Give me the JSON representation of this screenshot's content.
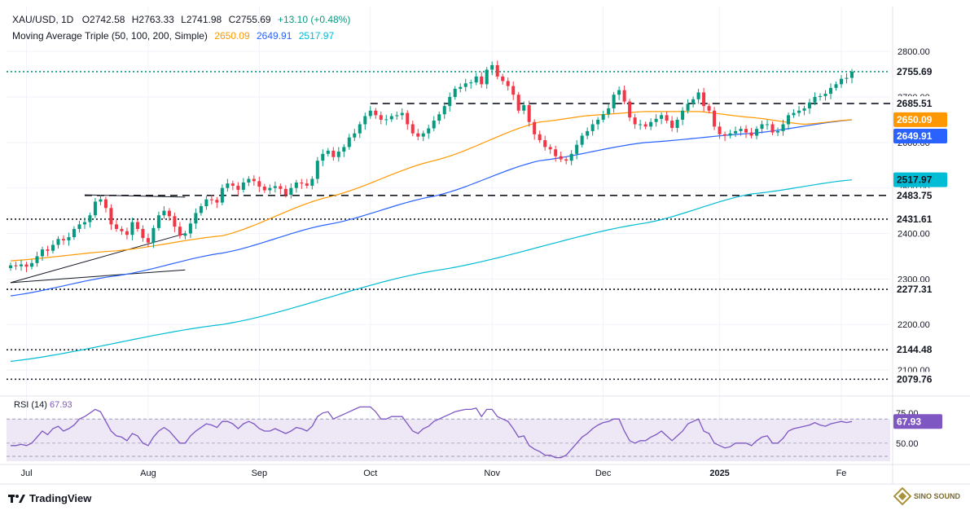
{
  "header": {
    "symbol": "XAU/USD, 1D",
    "open": "O2742.58",
    "high": "H2763.33",
    "low": "L2741.98",
    "close": "C2755.69",
    "change": "+13.10 (+0.48%)",
    "indicator_name": "Moving Average Triple (50, 100, 200, Simple)",
    "ma50_value": "2650.09",
    "ma100_value": "2649.91",
    "ma200_value": "2517.97"
  },
  "rsi_header": {
    "name": "RSI (14)",
    "value": "67.93"
  },
  "footer": {
    "brand": "TradingView"
  },
  "watermark": {
    "name": "SINO SOUND"
  },
  "colors": {
    "up": "#089981",
    "down": "#f23645",
    "ma50": "#ff9800",
    "ma100": "#2962ff",
    "ma200": "#00bcd4",
    "rsi": "#7e57c2",
    "rsi_band": "#ede7f6",
    "axis_text": "#131722",
    "last_price": "#089981"
  },
  "chart_data": {
    "type": "candlestick",
    "symbol": "XAU/USD",
    "timeframe": "1D",
    "ylim": [
      2050,
      2820
    ],
    "y_ticks": [
      2100,
      2200,
      2300,
      2400,
      2500,
      2600,
      2700,
      2800
    ],
    "x_tick_labels": [
      {
        "label": "Jul",
        "bar": 3
      },
      {
        "label": "Aug",
        "bar": 26
      },
      {
        "label": "Sep",
        "bar": 47
      },
      {
        "label": "Oct",
        "bar": 68
      },
      {
        "label": "Nov",
        "bar": 91
      },
      {
        "label": "Dec",
        "bar": 112
      },
      {
        "label": "2025",
        "bar": 134
      },
      {
        "label": "Fe",
        "bar": 157
      }
    ],
    "total_bars": 160,
    "closes": [
      2330,
      2328,
      2332,
      2327,
      2335,
      2350,
      2365,
      2362,
      2375,
      2388,
      2385,
      2392,
      2410,
      2420,
      2425,
      2440,
      2470,
      2475,
      2456,
      2420,
      2410,
      2405,
      2397,
      2425,
      2410,
      2390,
      2380,
      2412,
      2440,
      2450,
      2438,
      2415,
      2395,
      2400,
      2422,
      2445,
      2460,
      2475,
      2474,
      2468,
      2500,
      2510,
      2505,
      2496,
      2512,
      2520,
      2515,
      2503,
      2495,
      2500,
      2504,
      2498,
      2485,
      2500,
      2512,
      2510,
      2505,
      2520,
      2560,
      2575,
      2582,
      2568,
      2580,
      2590,
      2611,
      2620,
      2640,
      2658,
      2670,
      2660,
      2650,
      2651,
      2658,
      2660,
      2665,
      2640,
      2620,
      2613,
      2620,
      2631,
      2648,
      2662,
      2680,
      2700,
      2718,
      2722,
      2730,
      2732,
      2745,
      2728,
      2760,
      2770,
      2745,
      2735,
      2724,
      2705,
      2670,
      2682,
      2645,
      2618,
      2605,
      2590,
      2585,
      2570,
      2563,
      2560,
      2575,
      2595,
      2615,
      2625,
      2640,
      2650,
      2662,
      2675,
      2705,
      2715,
      2690,
      2655,
      2640,
      2640,
      2635,
      2645,
      2652,
      2660,
      2648,
      2632,
      2650,
      2670,
      2685,
      2695,
      2710,
      2680,
      2670,
      2635,
      2618,
      2615,
      2620,
      2625,
      2630,
      2622,
      2615,
      2630,
      2640,
      2640,
      2622,
      2625,
      2640,
      2660,
      2665,
      2670,
      2675,
      2688,
      2700,
      2702,
      2707,
      2720,
      2728,
      2740,
      2742,
      2755.69
    ],
    "ma50": [
      [
        0,
        2340
      ],
      [
        20,
        2362
      ],
      [
        40,
        2395
      ],
      [
        60,
        2480
      ],
      [
        80,
        2560
      ],
      [
        100,
        2645
      ],
      [
        110,
        2660
      ],
      [
        120,
        2668
      ],
      [
        130,
        2668
      ],
      [
        140,
        2655
      ],
      [
        150,
        2640
      ],
      [
        159,
        2650.09
      ]
    ],
    "ma100": [
      [
        0,
        2263
      ],
      [
        20,
        2307
      ],
      [
        40,
        2357
      ],
      [
        60,
        2420
      ],
      [
        80,
        2482
      ],
      [
        100,
        2560
      ],
      [
        120,
        2600
      ],
      [
        140,
        2620
      ],
      [
        159,
        2649.91
      ]
    ],
    "ma200": [
      [
        0,
        2119
      ],
      [
        40,
        2200
      ],
      [
        80,
        2318
      ],
      [
        120,
        2423
      ],
      [
        140,
        2487
      ],
      [
        159,
        2517.97
      ]
    ],
    "horizontal_levels": [
      {
        "value": 2755.69,
        "label": "2755.69",
        "style": "dotted",
        "color": "#089981"
      },
      {
        "value": 2685.51,
        "label": "2685.51",
        "style": "dashed",
        "from_bar": 68
      },
      {
        "value": 2483.75,
        "label": "2483.75",
        "style": "dashed",
        "from_bar": 14
      },
      {
        "value": 2431.61,
        "label": "2431.61",
        "style": "dotted"
      },
      {
        "value": 2277.31,
        "label": "2277.31",
        "style": "dotted"
      },
      {
        "value": 2144.48,
        "label": "2144.48",
        "style": "dotted"
      },
      {
        "value": 2079.76,
        "label": "2079.76",
        "style": "dotted"
      }
    ],
    "price_badges": [
      {
        "value": 2650.09,
        "label": "2650.09",
        "color": "#ff9800",
        "text_color": "#ffffff"
      },
      {
        "value": 2649.91,
        "label": "2649.91",
        "color": "#2962ff",
        "text_color": "#ffffff",
        "offset": 1
      },
      {
        "value": 2517.97,
        "label": "2517.97",
        "color": "#00bcd4",
        "text_color": "#131722"
      }
    ],
    "trendlines": [
      {
        "from": [
          0,
          2292
        ],
        "to": [
          33,
          2320
        ]
      },
      {
        "from": [
          0,
          2292
        ],
        "to": [
          33,
          2400
        ]
      },
      {
        "from": [
          14,
          2485
        ],
        "to": [
          33,
          2480
        ]
      }
    ],
    "rsi": {
      "name": "RSI (14)",
      "current": 67.93,
      "ylim": [
        35,
        85
      ],
      "ticks": [
        50,
        75
      ],
      "band": [
        30,
        70
      ],
      "values": [
        48,
        48,
        49,
        48,
        50,
        55,
        60,
        57,
        62,
        64,
        60,
        62,
        65,
        70,
        72,
        75,
        78,
        76,
        68,
        60,
        56,
        55,
        52,
        58,
        56,
        50,
        48,
        55,
        60,
        63,
        60,
        55,
        50,
        50,
        56,
        60,
        63,
        66,
        65,
        63,
        68,
        68,
        66,
        62,
        66,
        68,
        66,
        62,
        60,
        60,
        62,
        60,
        58,
        60,
        63,
        62,
        60,
        64,
        72,
        75,
        76,
        70,
        72,
        74,
        76,
        78,
        80,
        80,
        80,
        76,
        70,
        70,
        72,
        72,
        72,
        66,
        60,
        58,
        62,
        64,
        68,
        70,
        72,
        74,
        76,
        77,
        78,
        78,
        79,
        72,
        78,
        78,
        72,
        70,
        68,
        62,
        55,
        56,
        48,
        45,
        43,
        40,
        40,
        38,
        38,
        40,
        45,
        50,
        55,
        58,
        62,
        65,
        67,
        68,
        70,
        70,
        60,
        52,
        50,
        52,
        52,
        55,
        57,
        60,
        56,
        52,
        56,
        60,
        66,
        68,
        70,
        60,
        58,
        50,
        48,
        46,
        47,
        50,
        50,
        50,
        48,
        52,
        55,
        56,
        50,
        50,
        54,
        60,
        62,
        63,
        64,
        65,
        67,
        65,
        64,
        66,
        67,
        68,
        67,
        67.93
      ]
    }
  }
}
